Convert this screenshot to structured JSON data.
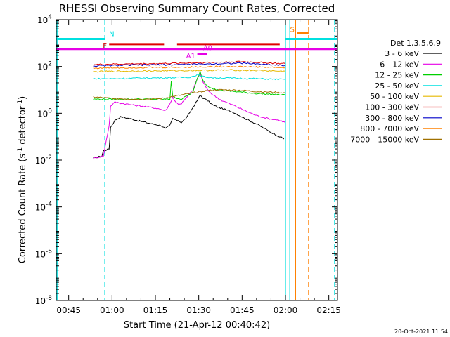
{
  "chart_data": {
    "type": "line",
    "title": "RHESSI Observing Summary Count Rates, Corrected",
    "xlabel": "Start Time (21-Apr-12 00:40:42)",
    "ylabel_main": "Corrected Count Rate (s",
    "ylabel_sup1": "-1",
    "ylabel_mid": " detector",
    "ylabel_sup2": "-1",
    "ylabel_end": ")",
    "x_unit": "minutes since 00:40",
    "xlim": [
      40.7,
      138
    ],
    "ylim": [
      1e-08,
      10000
    ],
    "y_scale": "log",
    "x_ticks": [
      {
        "value": 45,
        "label": "00:45"
      },
      {
        "value": 60,
        "label": "01:00"
      },
      {
        "value": 75,
        "label": "01:15"
      },
      {
        "value": 90,
        "label": "01:30"
      },
      {
        "value": 105,
        "label": "01:45"
      },
      {
        "value": 120,
        "label": "02:00"
      },
      {
        "value": 135,
        "label": "02:15"
      }
    ],
    "y_ticks": [
      {
        "value": 1e-08,
        "base": "10",
        "exp": "-8"
      },
      {
        "value": 1e-06,
        "base": "10",
        "exp": "-6"
      },
      {
        "value": 0.0001,
        "base": "10",
        "exp": "-4"
      },
      {
        "value": 0.01,
        "base": "10",
        "exp": "-2"
      },
      {
        "value": 1,
        "base": "10",
        "exp": "0"
      },
      {
        "value": 100,
        "base": "10",
        "exp": "2"
      },
      {
        "value": 10000,
        "base": "10",
        "exp": "4"
      }
    ],
    "legend_title": "Det 1,3,5,6,9",
    "legend_position": "right",
    "series": [
      {
        "name": "3 - 6 keV",
        "color": "#000000",
        "x": [
          53.5,
          56.5,
          57,
          59,
          59.5,
          61,
          63,
          66,
          70,
          74,
          77,
          78.5,
          80,
          81,
          82,
          83,
          84,
          86,
          88,
          89.5,
          90.5,
          91.5,
          93,
          95,
          98,
          102,
          106,
          110,
          114,
          118,
          119.5
        ],
        "y": [
          0.012,
          0.015,
          0.025,
          0.03,
          0.25,
          0.5,
          0.7,
          0.6,
          0.45,
          0.35,
          0.3,
          0.22,
          0.3,
          0.6,
          0.5,
          0.5,
          0.4,
          0.7,
          1.8,
          3.5,
          6,
          4.5,
          3.5,
          2.2,
          1.6,
          1.1,
          0.6,
          0.35,
          0.18,
          0.1,
          0.08
        ]
      },
      {
        "name": "6 - 12 keV",
        "color": "#e600e6",
        "x": [
          53.5,
          57,
          59,
          59.5,
          61,
          64,
          68,
          72,
          76,
          78.5,
          80,
          81,
          82,
          83,
          84,
          86,
          88,
          89.5,
          90.5,
          91.5,
          93,
          95,
          98,
          102,
          106,
          110,
          114,
          118,
          120
        ],
        "y": [
          0.012,
          0.015,
          0.3,
          2,
          3,
          2.6,
          2.2,
          1.9,
          1.6,
          1.3,
          2.5,
          5,
          3,
          2.5,
          2.6,
          5,
          10,
          30,
          50,
          22,
          10,
          6,
          3.5,
          2.2,
          1.3,
          0.8,
          0.6,
          0.5,
          0.4
        ]
      },
      {
        "name": "12 - 25 keV",
        "color": "#00d000",
        "x": [
          53.5,
          58,
          63,
          70,
          77,
          80,
          80.5,
          81,
          84,
          88,
          89.5,
          90.5,
          91.5,
          93,
          96,
          100,
          105,
          110,
          115,
          120
        ],
        "y": [
          4,
          4,
          4,
          4,
          4,
          4,
          25,
          5,
          4,
          8,
          30,
          60,
          25,
          15,
          10,
          9,
          8,
          7,
          6.5,
          6
        ]
      },
      {
        "name": "25 - 50 keV",
        "color": "#00e0e0",
        "x": [
          53.5,
          60,
          70,
          80,
          87,
          88.5,
          89.5,
          90.5,
          92,
          95,
          100,
          110,
          120
        ],
        "y": [
          30,
          30,
          32,
          33,
          35,
          40,
          45,
          40,
          36,
          33,
          32,
          30,
          28
        ]
      },
      {
        "name": "50 - 100 keV",
        "color": "#e6b800",
        "x": [
          53.5,
          60,
          70,
          80,
          90,
          100,
          110,
          120
        ],
        "y": [
          60,
          62,
          64,
          66,
          68,
          70,
          68,
          62
        ]
      },
      {
        "name": "100 - 300 keV",
        "color": "#e00000",
        "x": [
          53.5,
          60,
          70,
          80,
          90,
          100,
          105,
          110,
          120
        ],
        "y": [
          120,
          125,
          130,
          135,
          145,
          155,
          160,
          150,
          130
        ]
      },
      {
        "name": "300 - 800 keV",
        "color": "#0000c8",
        "x": [
          53.5,
          60,
          70,
          80,
          90,
          100,
          105,
          110,
          120
        ],
        "y": [
          105,
          110,
          115,
          118,
          125,
          135,
          138,
          128,
          110
        ]
      },
      {
        "name": "800 - 7000 keV",
        "color": "#ff8000",
        "x": [
          53.5,
          60,
          70,
          80,
          90,
          100,
          110,
          120
        ],
        "y": [
          85,
          88,
          90,
          92,
          96,
          100,
          96,
          88
        ]
      },
      {
        "name": "7000 - 15000 keV",
        "color": "#a07000",
        "x": [
          53.5,
          58,
          63,
          70,
          77,
          80,
          84,
          88,
          92,
          96,
          100,
          105,
          110,
          115,
          120
        ],
        "y": [
          5,
          4.5,
          4.2,
          4,
          4.2,
          5,
          6,
          7.5,
          9,
          10,
          10,
          9.5,
          8.5,
          8,
          7.5
        ]
      }
    ],
    "flags": [
      {
        "label": "N",
        "color": "#00e0e0",
        "segments": [
          [
            40.7,
            57.5
          ],
          [
            120,
            138
          ]
        ],
        "y": 1500
      },
      {
        "label": "F",
        "color": "#e00000",
        "segments": [
          [
            59,
            78
          ],
          [
            82.5,
            118
          ]
        ],
        "y": 900
      },
      {
        "label": "S",
        "color": "#ff8000",
        "segments": [
          [
            124,
            128
          ]
        ],
        "y": 2600
      },
      {
        "label": "A0",
        "color": "#e600e6",
        "segments": [
          [
            40.7,
            138
          ]
        ],
        "y": 560
      },
      {
        "label": "A1",
        "color": "#e600e6",
        "segments": [
          [
            89.5,
            93
          ]
        ],
        "y": 340
      }
    ],
    "vlines": [
      {
        "x": 41,
        "color": "#00e0e0",
        "style": "solid"
      },
      {
        "x": 57.5,
        "color": "#00e0e0",
        "style": "dashed"
      },
      {
        "x": 120,
        "color": "#00e0e0",
        "style": "solid"
      },
      {
        "x": 121.5,
        "color": "#00e0e0",
        "style": "solid"
      },
      {
        "x": 123.5,
        "color": "#ff8000",
        "style": "solid"
      },
      {
        "x": 128,
        "color": "#ff8000",
        "style": "dashed"
      },
      {
        "x": 137,
        "color": "#00e0e0",
        "style": "dashed"
      }
    ],
    "timestamp": "20-Oct-2021 11:54"
  }
}
